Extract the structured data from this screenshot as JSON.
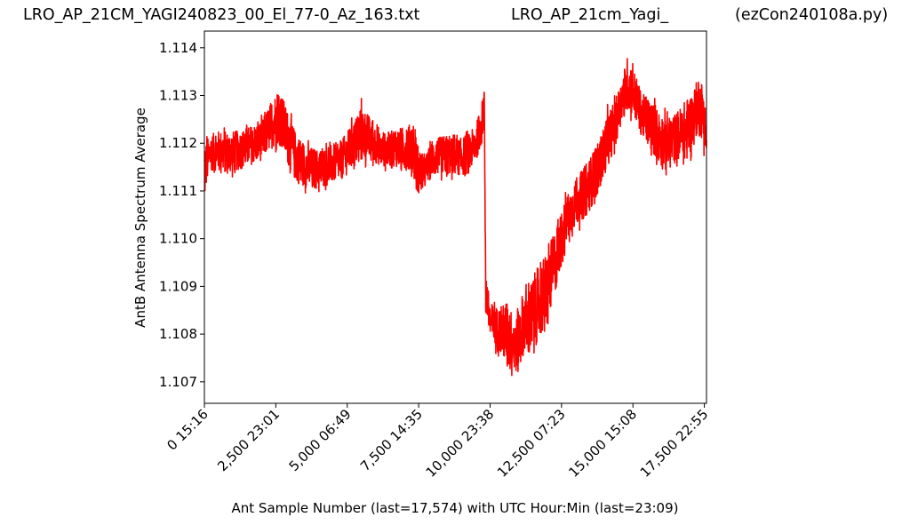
{
  "header": {
    "left": "LRO_AP_21CM_YAGI240823_00_El_77-0_Az_163.txt",
    "center": "LRO_AP_21cm_Yagi_",
    "right": "(ezCon240108a.py)"
  },
  "chart_data": {
    "type": "line",
    "title": "",
    "xlabel": "Ant Sample Number (last=17,574) with UTC Hour:Min (last=23:09)",
    "ylabel": "AntB Antenna Spectrum Average",
    "xlim": [
      0,
      17574
    ],
    "ylim": [
      1.10655,
      1.11435
    ],
    "x_ticks": [
      {
        "value": 0,
        "label": "0  15:16"
      },
      {
        "value": 2500,
        "label": "2,500  23:01"
      },
      {
        "value": 5000,
        "label": "5,000  06:49"
      },
      {
        "value": 7500,
        "label": "7,500  14:35"
      },
      {
        "value": 10000,
        "label": "10,000  23:38"
      },
      {
        "value": 12500,
        "label": "12,500  07:23"
      },
      {
        "value": 15000,
        "label": "15,000  15:08"
      },
      {
        "value": 17500,
        "label": "17,500  22:55"
      }
    ],
    "y_ticks": [
      {
        "value": 1.107,
        "label": "1.107"
      },
      {
        "value": 1.108,
        "label": "1.108"
      },
      {
        "value": 1.109,
        "label": "1.109"
      },
      {
        "value": 1.11,
        "label": "1.110"
      },
      {
        "value": 1.111,
        "label": "1.111"
      },
      {
        "value": 1.112,
        "label": "1.112"
      },
      {
        "value": 1.113,
        "label": "1.113"
      },
      {
        "value": 1.114,
        "label": "1.114"
      }
    ],
    "grid": false,
    "series": [
      {
        "color": "#ff0000",
        "envelope_x": [
          0,
          200,
          500,
          800,
          1200,
          1600,
          2000,
          2300,
          2600,
          2900,
          3200,
          3600,
          4000,
          4400,
          4800,
          5200,
          5500,
          5800,
          6200,
          6600,
          7000,
          7300,
          7500,
          7700,
          8000,
          8400,
          8800,
          9200,
          9500,
          9700,
          9800,
          9850,
          9900,
          9950,
          10000,
          10300,
          10600,
          10900,
          11200,
          11400,
          11600,
          12000,
          12400,
          12700,
          13000,
          13400,
          13800,
          14100,
          14400,
          14600,
          14800,
          15000,
          15300,
          15600,
          15900,
          16200,
          16500,
          16800,
          17100,
          17300,
          17500,
          17574
        ],
        "envelope_low": [
          1.1107,
          1.1113,
          1.1113,
          1.1112,
          1.1113,
          1.1114,
          1.1115,
          1.1117,
          1.1118,
          1.1114,
          1.111,
          1.1109,
          1.1109,
          1.111,
          1.1111,
          1.1113,
          1.1114,
          1.1115,
          1.1114,
          1.1114,
          1.1113,
          1.1112,
          1.1107,
          1.111,
          1.1112,
          1.1112,
          1.1112,
          1.1112,
          1.1115,
          1.1118,
          1.1123,
          1.108,
          1.1083,
          1.1079,
          1.1077,
          1.1075,
          1.1071,
          1.107,
          1.1074,
          1.1072,
          1.1075,
          1.1079,
          1.109,
          1.1098,
          1.1101,
          1.1103,
          1.1108,
          1.1113,
          1.1118,
          1.1123,
          1.1125,
          1.1124,
          1.112,
          1.1117,
          1.1114,
          1.1112,
          1.1115,
          1.1113,
          1.1117,
          1.1121,
          1.1117,
          1.1115
        ],
        "envelope_high": [
          1.1122,
          1.1123,
          1.1124,
          1.1124,
          1.1124,
          1.1125,
          1.1126,
          1.113,
          1.1134,
          1.1129,
          1.1124,
          1.1121,
          1.112,
          1.1121,
          1.1122,
          1.1126,
          1.113,
          1.1127,
          1.1123,
          1.1124,
          1.1125,
          1.1126,
          1.1121,
          1.1118,
          1.1122,
          1.1123,
          1.1122,
          1.1123,
          1.1125,
          1.113,
          1.1132,
          1.1097,
          1.1092,
          1.109,
          1.1088,
          1.1087,
          1.1089,
          1.1085,
          1.1091,
          1.1093,
          1.1096,
          1.11,
          1.1106,
          1.1111,
          1.1114,
          1.1118,
          1.1122,
          1.1128,
          1.1131,
          1.1135,
          1.114,
          1.1138,
          1.1132,
          1.1131,
          1.1129,
          1.1127,
          1.1128,
          1.1131,
          1.1133,
          1.1136,
          1.1133,
          1.1125
        ]
      }
    ]
  }
}
